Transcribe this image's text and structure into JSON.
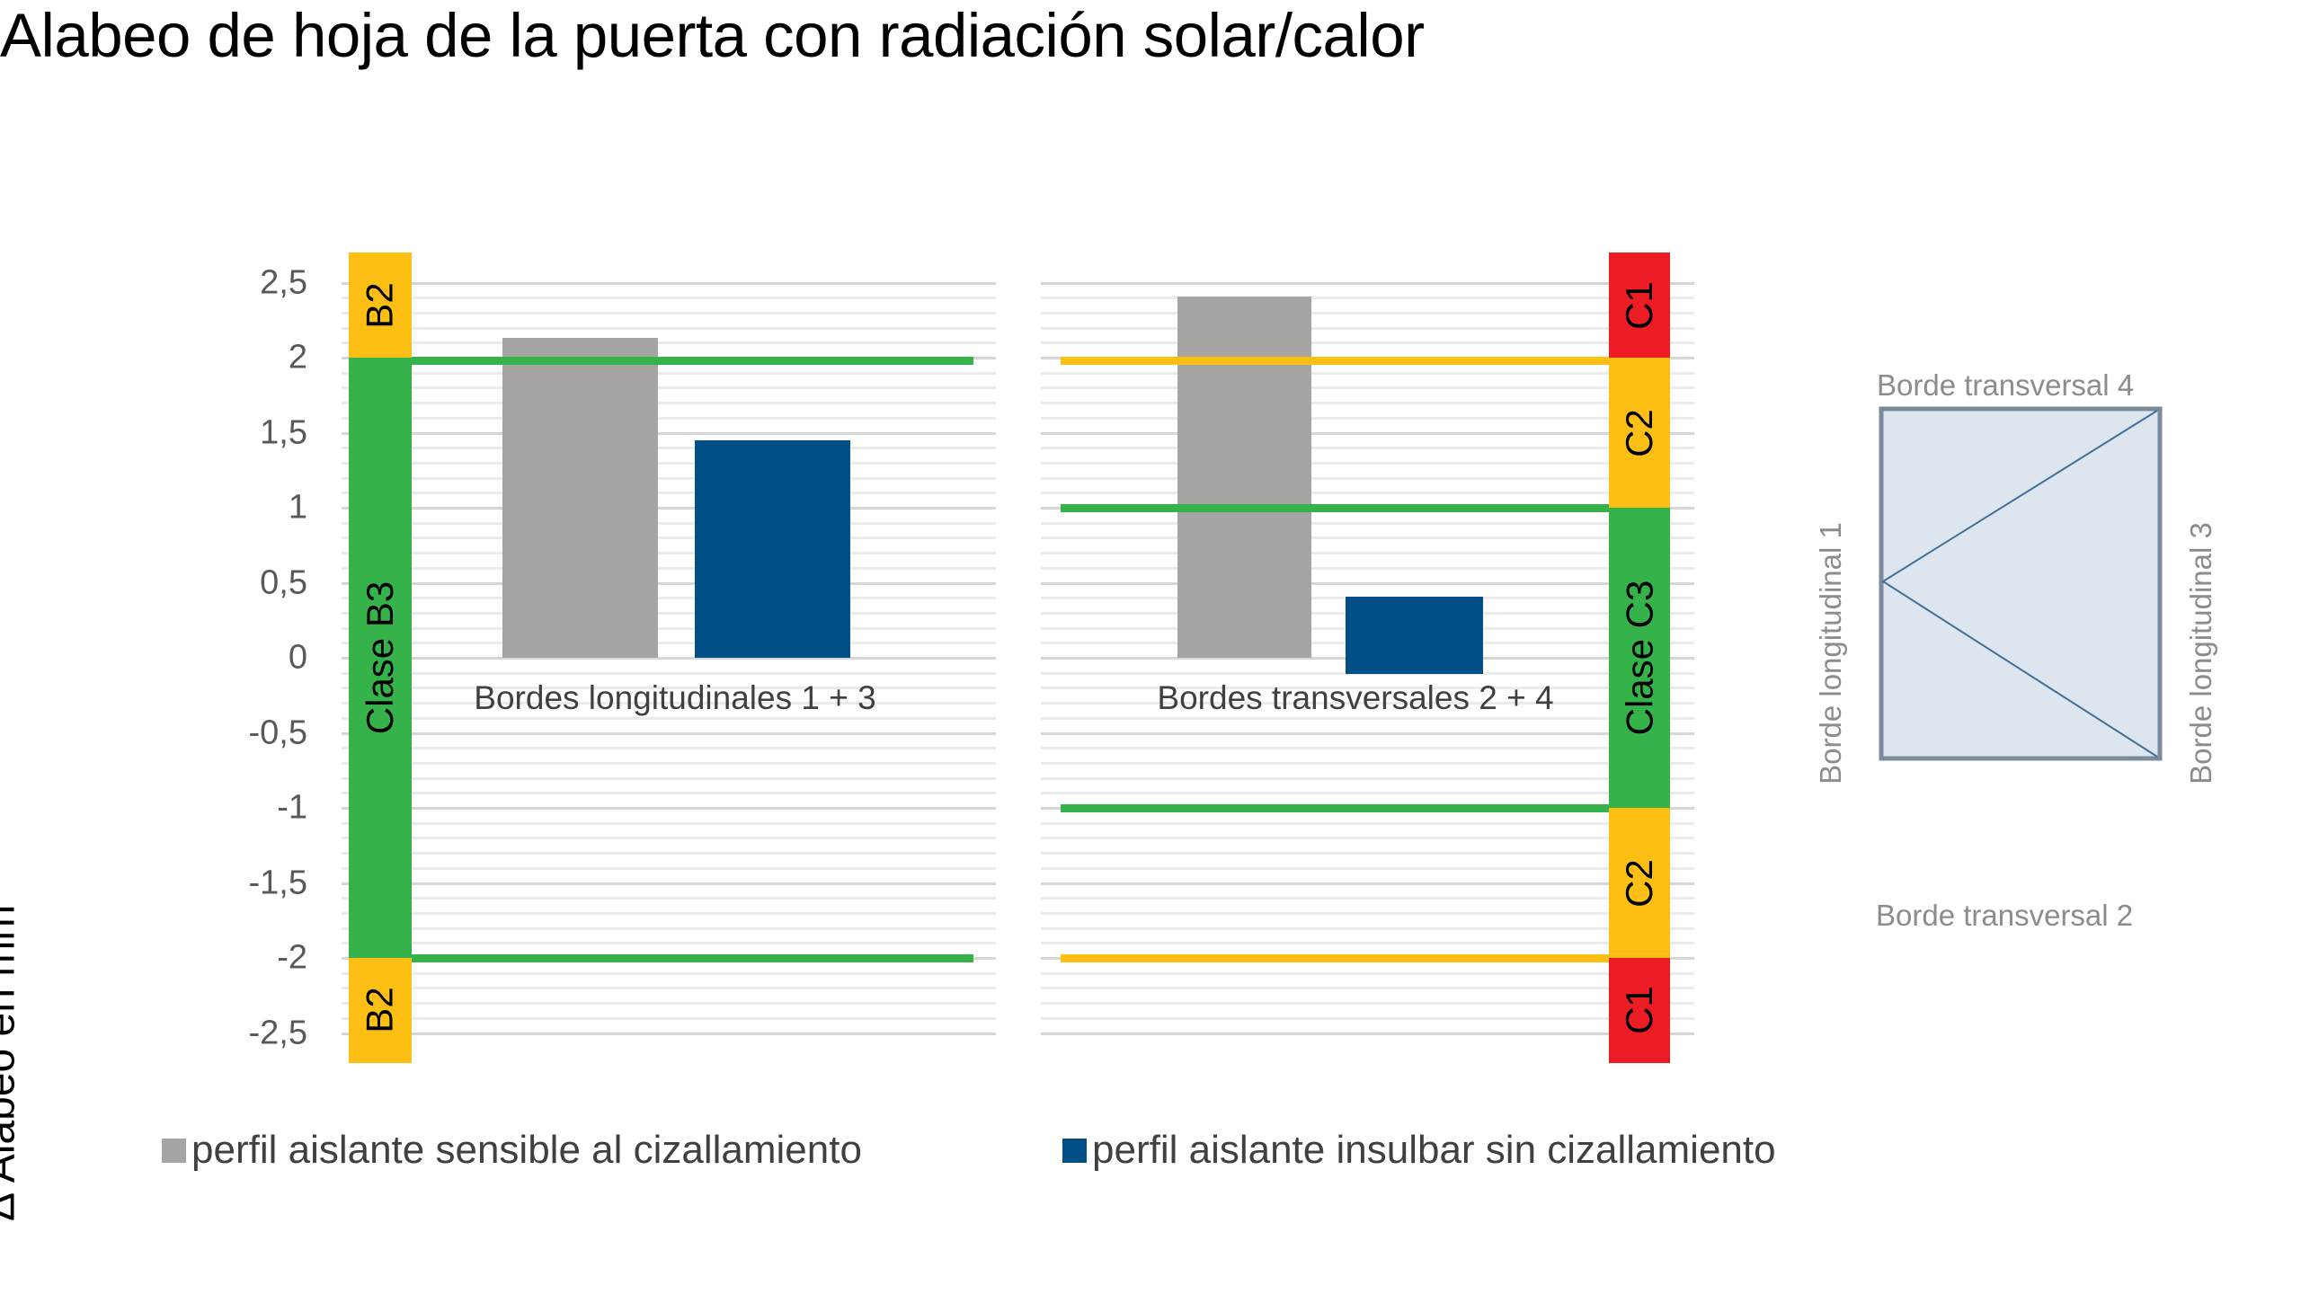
{
  "title": "Alabeo de hoja de la puerta con radiación solar/calor",
  "y_axis": {
    "label": "Δ Alabeo en mm",
    "ticks": [
      "2,5",
      "2",
      "1,5",
      "1",
      "0,5",
      "0",
      "-0,5",
      "-1",
      "-1,5",
      "-2",
      "-2,5"
    ]
  },
  "colors": {
    "gray_bar": "#a6a5a4",
    "blue_bar": "#004f87",
    "green": "#35b34a",
    "yellow": "#fdbf14",
    "red": "#ec1c24",
    "grid_major": "#d6d6d6",
    "grid_minor": "#ebebeb",
    "diagram_fill": "#dde6ee",
    "diagram_stroke": "#7a8c9c",
    "diagram_line": "#3f6f9a"
  },
  "left_panel": {
    "category": "Bordes longitudinales  1 + 3",
    "bands": [
      {
        "label": "B2",
        "from": 2.0,
        "to": 2.7,
        "color": "yellow"
      },
      {
        "label": "Clase B3",
        "from": -2.0,
        "to": 2.0,
        "color": "green"
      },
      {
        "label": "B2",
        "from": -2.7,
        "to": -2.0,
        "color": "yellow"
      }
    ],
    "limit_lines": [
      {
        "value": 1.98,
        "color": "green"
      },
      {
        "value": -2.0,
        "color": "green"
      }
    ]
  },
  "right_panel": {
    "category": "Bordes transversales  2 + 4",
    "bands": [
      {
        "label": "C1",
        "from": 2.0,
        "to": 2.7,
        "color": "red"
      },
      {
        "label": "C2",
        "from": 1.0,
        "to": 2.0,
        "color": "yellow"
      },
      {
        "label": "Clase C3",
        "from": -1.0,
        "to": 1.0,
        "color": "green"
      },
      {
        "label": "C2",
        "from": -2.0,
        "to": -1.0,
        "color": "yellow"
      },
      {
        "label": "C1",
        "from": -2.7,
        "to": -2.0,
        "color": "red"
      }
    ],
    "limit_lines": [
      {
        "value": 1.98,
        "color": "yellow"
      },
      {
        "value": 1.0,
        "color": "green"
      },
      {
        "value": -1.0,
        "color": "green"
      },
      {
        "value": -2.0,
        "color": "yellow"
      }
    ]
  },
  "legend": [
    {
      "label": "perfil aislante sensible al cizallamiento",
      "color": "#a6a5a4"
    },
    {
      "label": "perfil aislante insulbar sin cizallamiento",
      "color": "#004f87"
    }
  ],
  "diagram": {
    "top_label": "Borde transversal 4",
    "bottom_label": "Borde transversal 2",
    "left_label": "Borde longitudinal 1",
    "right_label": "Borde longitudinal 3"
  },
  "chart_data": {
    "type": "bar",
    "title": "Alabeo de hoja de la puerta con radiación solar/calor",
    "xlabel": "",
    "ylabel": "Δ Alabeo en mm",
    "ylim": [
      -2.5,
      2.5
    ],
    "grid": true,
    "legend_position": "bottom",
    "categories": [
      "Bordes longitudinales 1 + 3",
      "Bordes transversales 2 + 4"
    ],
    "series": [
      {
        "name": "perfil aislante sensible al cizallamiento",
        "values": [
          2.13,
          2.41
        ],
        "color": "#a6a5a4"
      },
      {
        "name": "perfil aislante insulbar sin cizallamiento",
        "values": [
          1.45,
          0.41
        ],
        "bottom": [
          0,
          -0.11
        ],
        "color": "#004f87"
      }
    ],
    "annotations": [
      "Left panel class bands: B2 (>2), Clase B3 (-2..2), B2 (<-2)",
      "Right panel class bands: C1 (>2), C2 (1..2), Clase C3 (-1..1), C2 (-2..-1), C1 (<-2)"
    ]
  }
}
